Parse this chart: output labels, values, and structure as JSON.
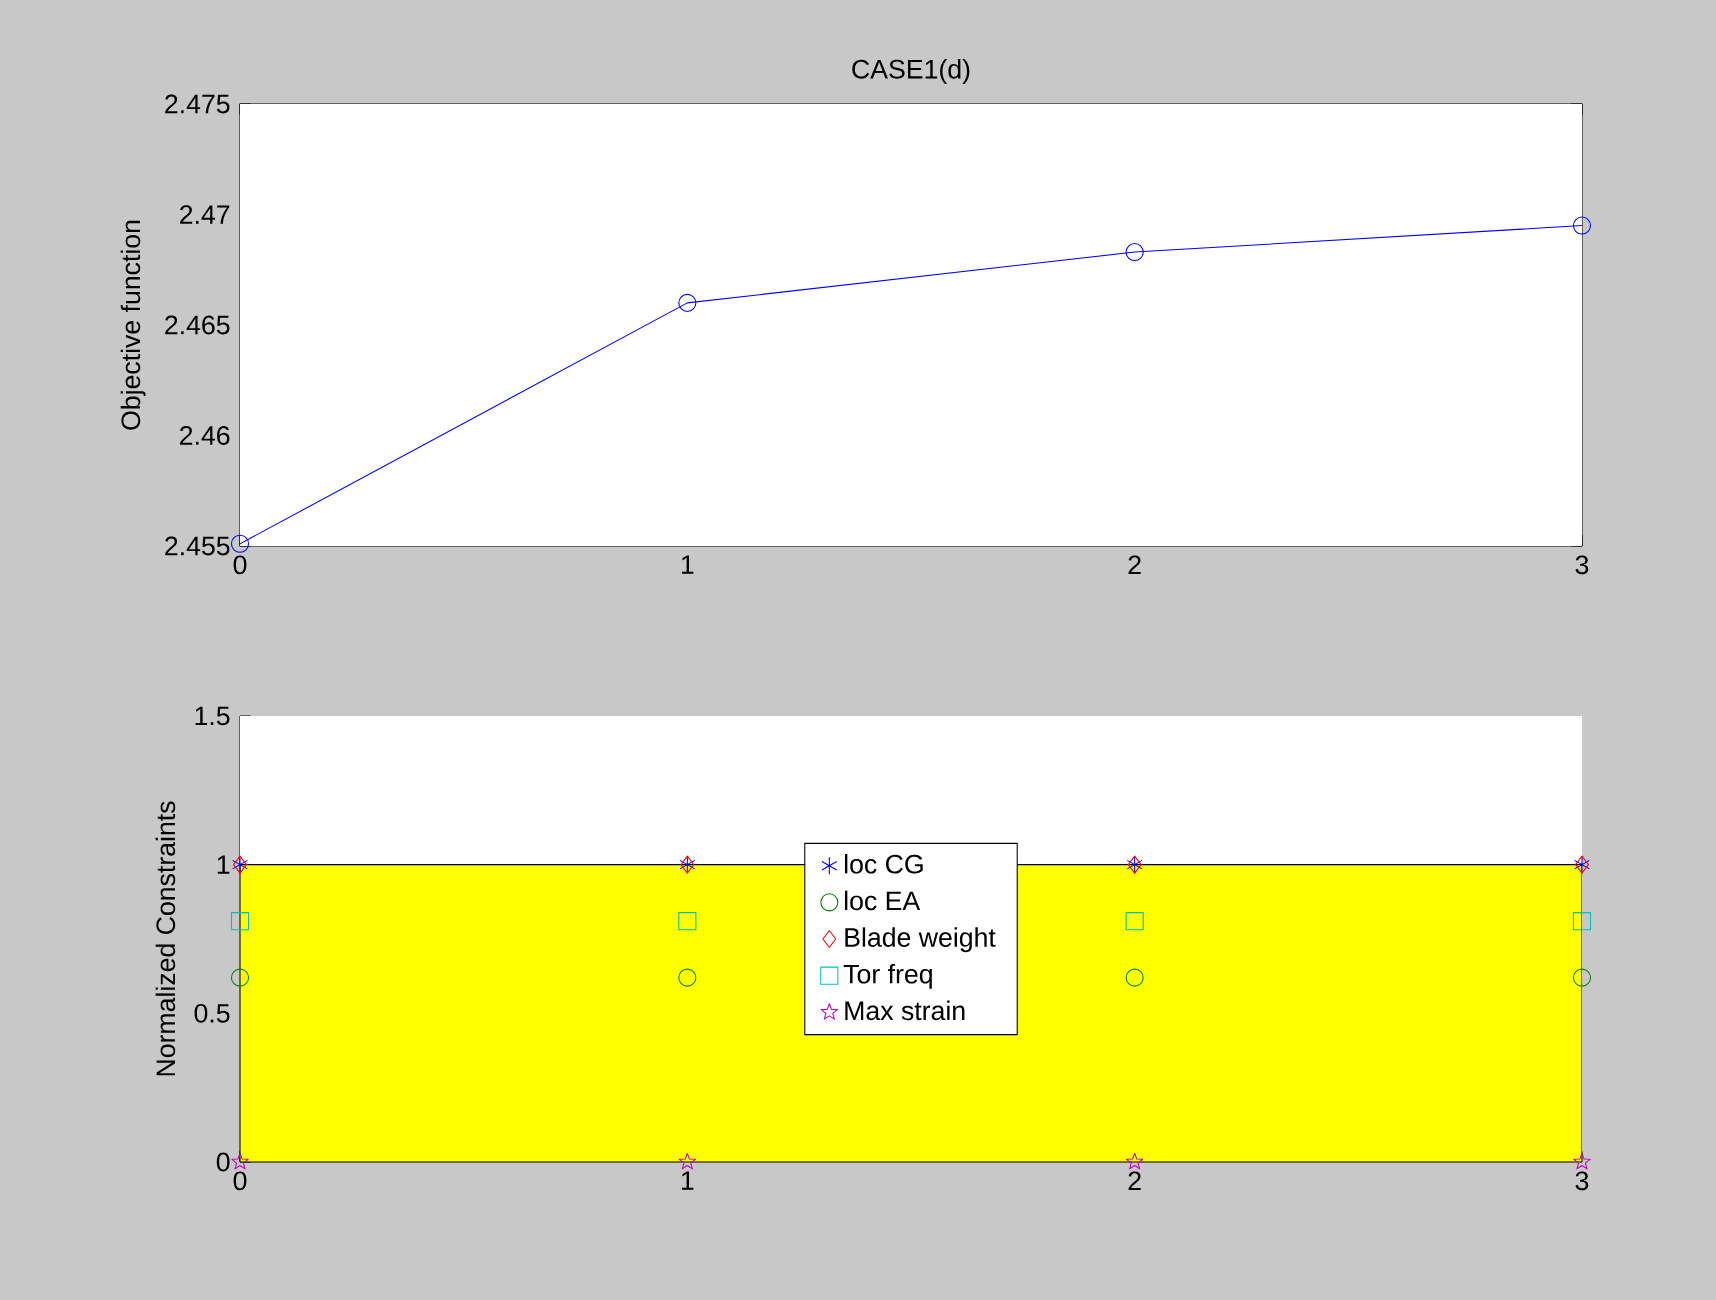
{
  "chart_data": [
    {
      "type": "line",
      "title": "CASE1(d)",
      "ylabel": "Objective function",
      "x": [
        0,
        1,
        2,
        3
      ],
      "xlim": [
        0,
        3
      ],
      "xticks": [
        0,
        1,
        2,
        3
      ],
      "ylim": [
        2.455,
        2.475
      ],
      "yticks": [
        2.455,
        2.46,
        2.465,
        2.47,
        2.475
      ],
      "values": [
        2.4551,
        2.466,
        2.4683,
        2.4695
      ],
      "color": "#0000ff",
      "marker": "circle",
      "line_style": "solid"
    },
    {
      "type": "scatter",
      "ylabel": "Normalized Constraints",
      "x": [
        0,
        1,
        2,
        3
      ],
      "xlim": [
        0,
        3
      ],
      "xticks": [
        0,
        1,
        2,
        3
      ],
      "ylim": [
        0,
        1.5
      ],
      "yticks": [
        0,
        0.5,
        1,
        1.5
      ],
      "legend": "center",
      "bands": [
        {
          "axis": "y",
          "from": 0,
          "to": 1,
          "color": "#ffff00"
        }
      ],
      "series": [
        {
          "name": "loc CG",
          "color": "#0000ff",
          "marker": "cross",
          "values": [
            1,
            1,
            1,
            1
          ]
        },
        {
          "name": "loc EA",
          "color": "#008000",
          "marker": "circle",
          "values": [
            0.62,
            0.62,
            0.62,
            0.62
          ]
        },
        {
          "name": "Blade weight",
          "color": "#ff0000",
          "marker": "diamond",
          "values": [
            1,
            1,
            1,
            1
          ]
        },
        {
          "name": "Tor freq",
          "color": "#00bfbf",
          "marker": "square",
          "values": [
            0.81,
            0.81,
            0.81,
            0.81
          ]
        },
        {
          "name": "Max strain",
          "color": "#bf00bf",
          "marker": "star",
          "values": [
            0,
            0,
            0,
            0
          ]
        }
      ]
    }
  ]
}
